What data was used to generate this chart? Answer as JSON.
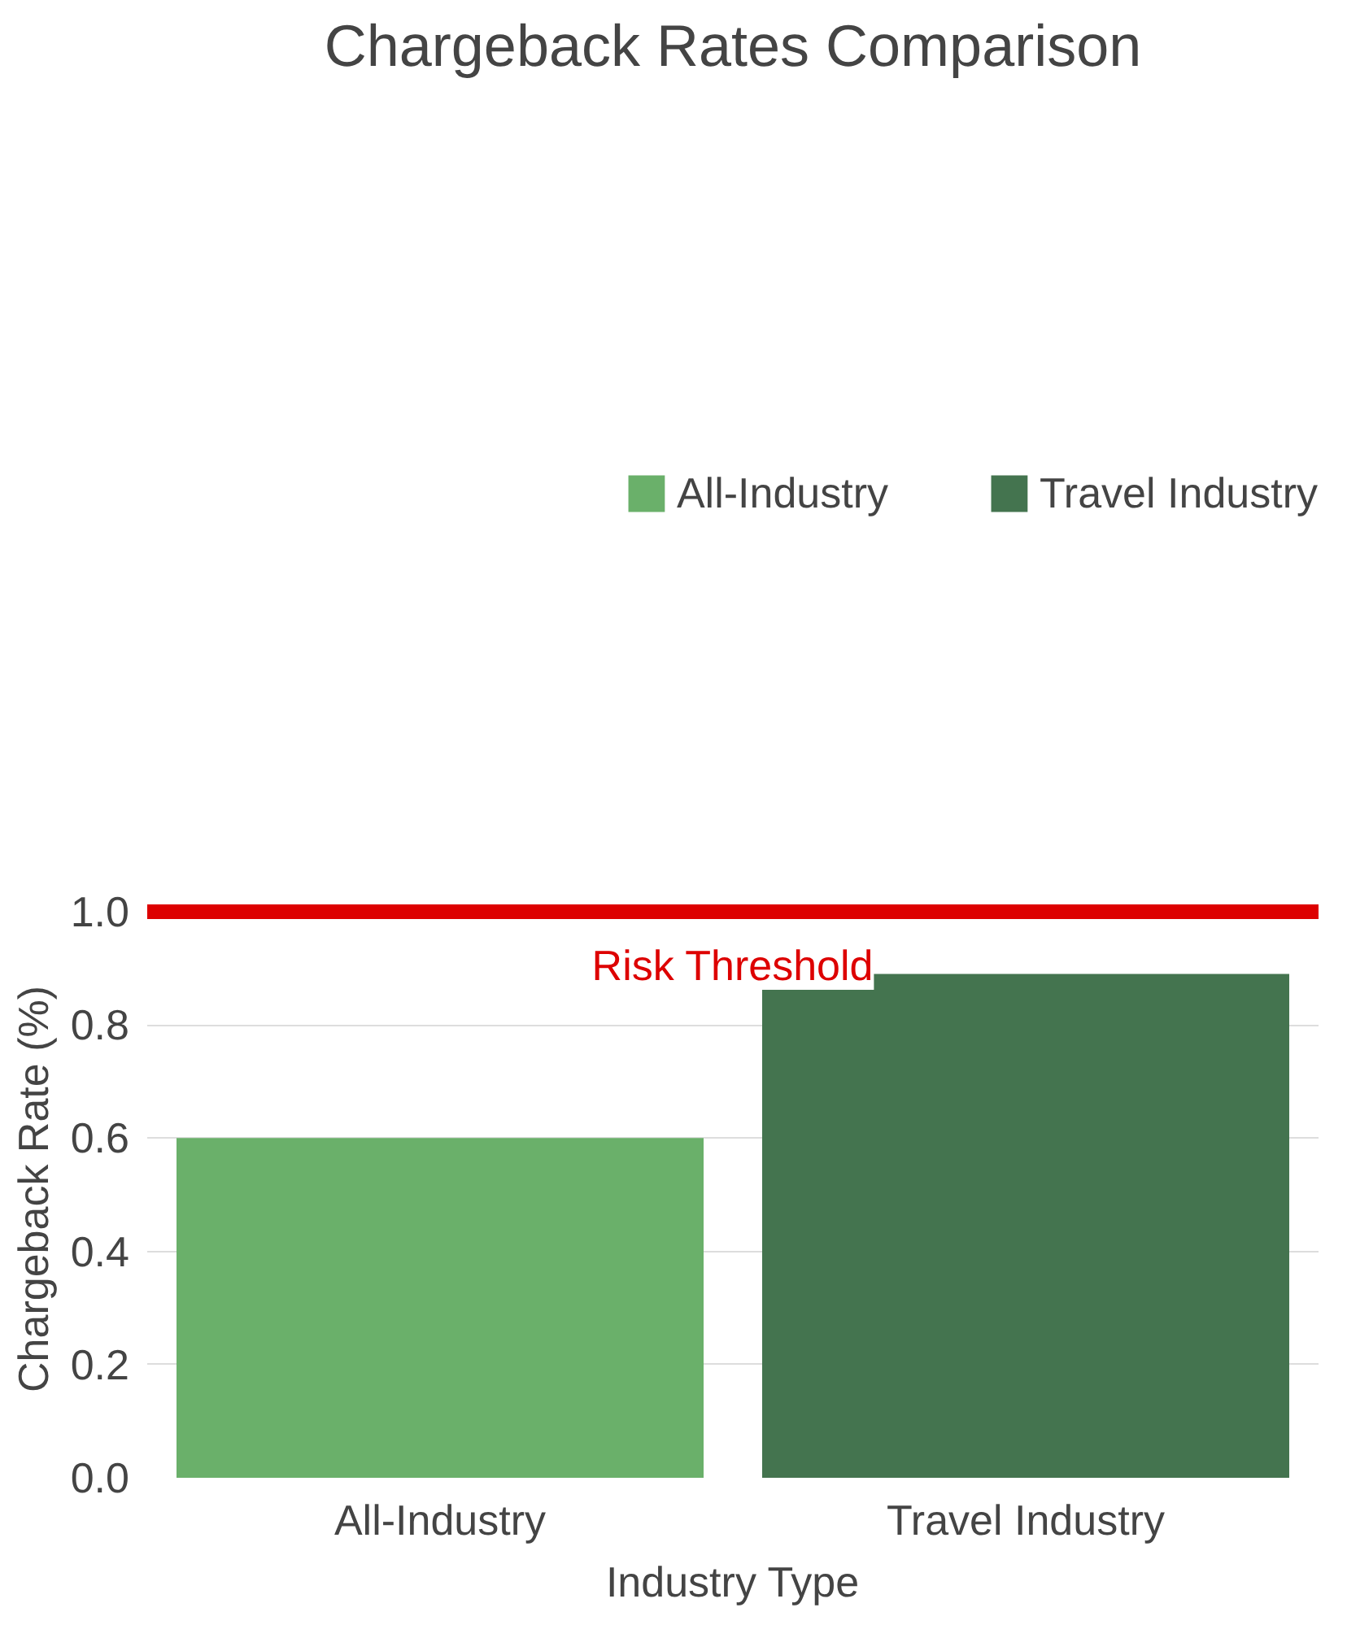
{
  "chart_data": {
    "type": "bar",
    "title": "Chargeback Rates Comparison",
    "xlabel": "Industry Type",
    "ylabel": "Chargeback Rate (%)",
    "categories": [
      "All-Industry",
      "Travel Industry"
    ],
    "series": [
      {
        "name": "All-Industry",
        "color": "#6ab06a",
        "values": [
          0.6,
          null
        ]
      },
      {
        "name": "Travel Industry",
        "color": "#44744f",
        "values": [
          null,
          0.89
        ]
      }
    ],
    "ylim": [
      0,
      1.0
    ],
    "yticks": [
      {
        "value": 0,
        "label": "0.0"
      },
      0.2,
      0.4,
      0.6,
      0.8,
      {
        "value": 1.0,
        "label": "1.0"
      }
    ],
    "ref_lines": [
      {
        "axis": "y",
        "value": 1.0,
        "label": "Risk Threshold",
        "color": "#dd0000"
      }
    ],
    "grid": "y",
    "legend": "top"
  }
}
